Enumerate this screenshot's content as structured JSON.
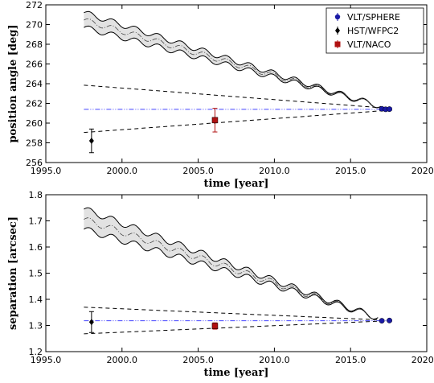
{
  "chart_data": [
    {
      "type": "scatter",
      "xlabel": "time [year]",
      "ylabel": "position angle [deg]",
      "xlim": [
        1995.0,
        2020.0
      ],
      "ylim": [
        256,
        272
      ],
      "xticks": [
        "1995.0",
        "2000.0",
        "2005.0",
        "2010.0",
        "2015.0",
        "2020.0"
      ],
      "yticks": [
        "256",
        "258",
        "260",
        "262",
        "264",
        "266",
        "268",
        "270",
        "272"
      ],
      "grid": false,
      "legend_position": "top-right",
      "series": [
        {
          "name": "VLT/SPHERE",
          "color": "#1a1aa6",
          "marker": "circle",
          "points": [
            {
              "x": 2017.05,
              "y": 261.45,
              "err": 0.15
            },
            {
              "x": 2017.3,
              "y": 261.4,
              "err": 0.15
            },
            {
              "x": 2017.55,
              "y": 261.42,
              "err": 0.15
            }
          ]
        },
        {
          "name": "HST/WFPC2",
          "color": "#000000",
          "marker": "diamond",
          "points": [
            {
              "x": 1998.0,
              "y": 258.2,
              "err": 1.2
            }
          ]
        },
        {
          "name": "VLT/NACO",
          "color": "#b01010",
          "marker": "square",
          "points": [
            {
              "x": 2006.1,
              "y": 260.3,
              "err": 1.2
            }
          ]
        }
      ],
      "band": {
        "x_start": 1997.5,
        "x_end": 2017.0,
        "upper_start": 271.2,
        "lower_start": 269.7,
        "mid_start": 270.45,
        "end_value": 261.7,
        "wiggles": 13,
        "wiggle_amplitude": 0.28
      },
      "dashed_lines": [
        {
          "x_start": 1997.5,
          "y_start": 263.85,
          "x_end": 2017.5,
          "y_end": 261.5
        },
        {
          "x_start": 1997.5,
          "y_start": 259.05,
          "x_end": 2017.5,
          "y_end": 261.3
        }
      ],
      "reference_line": {
        "y": 261.4,
        "x_start": 1997.5,
        "x_end": 2017.5,
        "color": "#4444ff"
      }
    },
    {
      "type": "scatter",
      "xlabel": "time [year]",
      "ylabel": "separation [arcsec]",
      "xlim": [
        1995.0,
        2020.0
      ],
      "ylim": [
        1.2,
        1.8
      ],
      "xticks": [
        "1995.0",
        "2000.0",
        "2005.0",
        "2010.0",
        "2015.0",
        "2020.0"
      ],
      "yticks": [
        "1.2",
        "1.3",
        "1.4",
        "1.5",
        "1.6",
        "1.7",
        "1.8"
      ],
      "grid": false,
      "series": [
        {
          "name": "VLT/SPHERE",
          "color": "#1a1aa6",
          "marker": "circle",
          "points": [
            {
              "x": 2017.05,
              "y": 1.318,
              "err": 0.004
            },
            {
              "x": 2017.55,
              "y": 1.319,
              "err": 0.004
            }
          ]
        },
        {
          "name": "HST/WFPC2",
          "color": "#000000",
          "marker": "diamond",
          "points": [
            {
              "x": 1998.0,
              "y": 1.313,
              "err": 0.04
            }
          ]
        },
        {
          "name": "VLT/NACO",
          "color": "#b01010",
          "marker": "square",
          "points": [
            {
              "x": 2006.1,
              "y": 1.298,
              "err": 0.012
            }
          ]
        }
      ],
      "band": {
        "x_start": 1997.5,
        "x_end": 2016.8,
        "upper_start": 1.745,
        "lower_start": 1.668,
        "mid_start": 1.706,
        "end_value": 1.33,
        "wiggles": 13,
        "wiggle_amplitude": 0.012
      },
      "dashed_lines": [
        {
          "x_start": 1997.5,
          "y_start": 1.37,
          "x_end": 2017.5,
          "y_end": 1.32
        },
        {
          "x_start": 1997.5,
          "y_start": 1.268,
          "x_end": 2017.5,
          "y_end": 1.318
        }
      ],
      "reference_line": {
        "y": 1.318,
        "x_start": 1997.5,
        "x_end": 2017.5,
        "color": "#4444ff"
      }
    }
  ]
}
